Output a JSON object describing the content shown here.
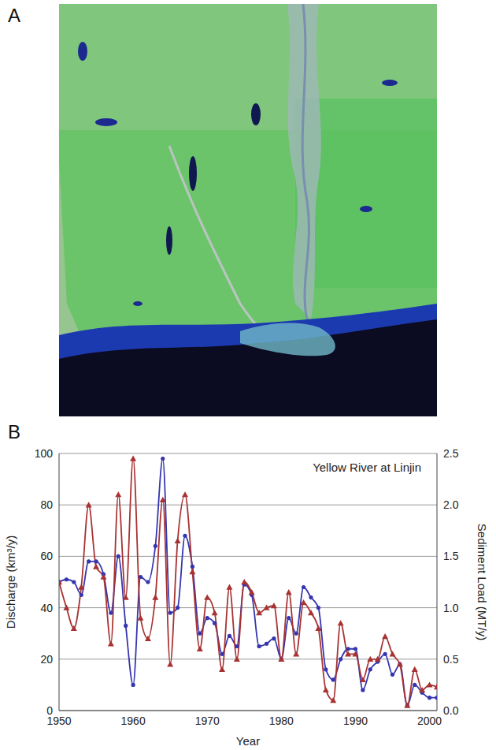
{
  "image_panel": {
    "label": "A"
  },
  "chart_data": {
    "type": "line",
    "panel_label": "B",
    "title": "Yellow River at Linjin",
    "x_label": "Year",
    "y_label": "Discharge (km³/y)",
    "y2_label": "Sediment Load (MT/y)",
    "x": [
      1950,
      1951,
      1952,
      1953,
      1954,
      1955,
      1956,
      1957,
      1958,
      1959,
      1960,
      1961,
      1962,
      1963,
      1964,
      1965,
      1966,
      1967,
      1968,
      1969,
      1970,
      1971,
      1972,
      1973,
      1974,
      1975,
      1976,
      1977,
      1978,
      1979,
      1980,
      1981,
      1982,
      1983,
      1984,
      1985,
      1986,
      1987,
      1988,
      1989,
      1990,
      1991,
      1992,
      1993,
      1994,
      1995,
      1996,
      1997,
      1998,
      1999,
      2000,
      2001
    ],
    "series": [
      {
        "color": "#3535b0",
        "marker": "circle",
        "values": [
          50,
          51,
          50,
          45,
          58,
          58,
          53,
          38,
          60,
          33,
          10,
          52,
          50,
          64,
          98,
          38,
          40,
          68,
          56,
          30,
          36,
          34,
          22,
          29,
          25,
          49,
          45,
          25,
          26,
          28,
          20,
          36,
          30,
          48,
          44,
          40,
          16,
          12,
          20,
          24,
          24,
          8,
          16,
          19,
          22,
          14,
          18,
          2,
          10,
          7,
          5,
          5
        ]
      },
      {
        "color": "#a83232",
        "marker": "triangle",
        "axis": "y2",
        "values": [
          1.25,
          1.0,
          0.8,
          1.2,
          2.0,
          1.4,
          1.3,
          0.65,
          2.1,
          1.1,
          2.45,
          0.9,
          0.7,
          1.1,
          2.05,
          0.45,
          1.65,
          2.1,
          1.35,
          0.6,
          1.1,
          0.95,
          0.4,
          1.2,
          0.5,
          1.25,
          1.15,
          0.95,
          1.0,
          1.02,
          0.5,
          1.15,
          0.55,
          1.05,
          0.95,
          0.8,
          0.2,
          0.1,
          0.85,
          0.55,
          0.55,
          0.3,
          0.5,
          0.5,
          0.72,
          0.55,
          0.45,
          0.05,
          0.4,
          0.2,
          0.25,
          0.23
        ]
      }
    ],
    "xlim": [
      1950,
      2001
    ],
    "xticks": [
      1950,
      1960,
      1970,
      1980,
      1990,
      2000
    ],
    "ylim": [
      0,
      100
    ],
    "yticks": [
      0,
      20,
      40,
      60,
      80,
      100
    ],
    "y2lim": [
      0,
      2.5
    ],
    "y2ticks": [
      {
        "value": 0,
        "label": "0.0"
      },
      0.5,
      {
        "value": 1,
        "label": "1.0"
      },
      1.5,
      {
        "value": 2,
        "label": "2.0"
      },
      2.5
    ],
    "grid": true
  }
}
